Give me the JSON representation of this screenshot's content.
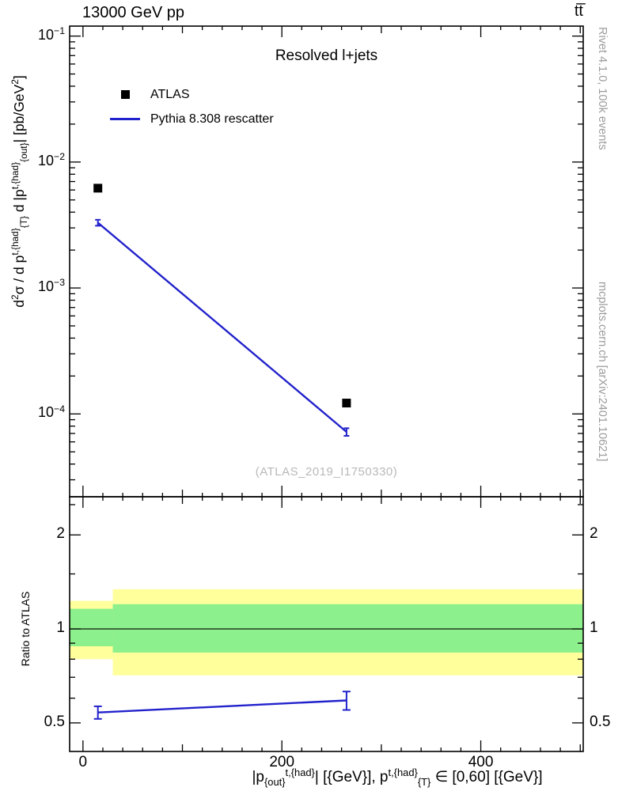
{
  "header": {
    "title_left": "13000 GeV pp",
    "title_right": "tt̅"
  },
  "side_captions": {
    "top": "Rivet 4.1.0,  100k events",
    "bottom": "mcplots.cern.ch [arXiv:2401.10621]"
  },
  "panel_title": "Resolved l+jets",
  "watermark": "(ATLAS_2019_I1750330)",
  "legend": [
    {
      "label": "ATLAS",
      "marker": "filled-square",
      "color": "#000000"
    },
    {
      "label": "Pythia 8.308 rescatter",
      "marker": "line",
      "color": "#2222cc"
    }
  ],
  "colors": {
    "line": "#2222cc",
    "band_outer": "#ffff9c",
    "band_inner": "#8cf08c",
    "caption": "#9b9b9b",
    "watermark": "#b9b9b9"
  },
  "chart_data": [
    {
      "name": "main",
      "type": "line",
      "title": "Resolved l+jets",
      "yscale": "log",
      "ylim": [
        2.2e-05,
        0.12
      ],
      "xlim": [
        -13.4,
        503
      ],
      "xticks": [
        0,
        200,
        400
      ],
      "x_minor_step": 20,
      "x_medium_step": 100,
      "ytick_exponents": [
        -1,
        -2,
        -3,
        -4
      ],
      "ylabel_segments": [
        {
          "t": "d"
        },
        {
          "t": "2",
          "s": "sup"
        },
        {
          "t": "σ / d p"
        },
        {
          "t": "t,{had}",
          "s": "sup"
        },
        {
          "t": "{T}",
          "s": "sub"
        },
        {
          "t": " d |p"
        },
        {
          "t": "t,{had}",
          "s": "sup"
        },
        {
          "t": "{out}",
          "s": "sub"
        },
        {
          "t": "| [pb/GeV"
        },
        {
          "t": "2",
          "s": "sup"
        },
        {
          "t": "]"
        }
      ],
      "series": [
        {
          "name": "ATLAS",
          "type": "scatter",
          "marker": "square",
          "color": "#000000",
          "x": [
            15,
            265
          ],
          "y": [
            0.0062,
            0.000122
          ]
        },
        {
          "name": "Pythia 8.308 rescatter",
          "type": "line",
          "color": "#2222cc",
          "x": [
            15,
            265
          ],
          "y": [
            0.0033,
            7.2e-05
          ],
          "yerr": [
            0.00018,
            5e-06
          ]
        }
      ]
    },
    {
      "name": "ratio",
      "type": "ratio-line",
      "ylabel": "Ratio to ATLAS",
      "yscale": "log",
      "ylim": [
        0.405,
        2.65
      ],
      "yticks": [
        2,
        1,
        0.5
      ],
      "ytick_labels": [
        "2",
        "1",
        "0.5"
      ],
      "y_minor_ticks": [
        0.6,
        0.7,
        0.8,
        0.9,
        1.5,
        2.5
      ],
      "reference_line": 1,
      "bands": [
        {
          "x1": -13.4,
          "x2": 30,
          "lo": 0.8,
          "hi": 1.23,
          "level": "outer"
        },
        {
          "x1": 30,
          "x2": 503,
          "lo": 0.71,
          "hi": 1.34,
          "level": "outer"
        },
        {
          "x1": -13.4,
          "x2": 30,
          "lo": 0.88,
          "hi": 1.16,
          "level": "inner"
        },
        {
          "x1": 30,
          "x2": 503,
          "lo": 0.84,
          "hi": 1.2,
          "level": "inner"
        }
      ],
      "series": [
        {
          "name": "Pythia 8.308 rescatter / ATLAS",
          "color": "#2222cc",
          "x": [
            15,
            265
          ],
          "y": [
            0.54,
            0.59
          ],
          "yerr": [
            0.025,
            0.04
          ]
        }
      ],
      "xlabel_segments": [
        {
          "t": "|p"
        },
        {
          "t": "{out}",
          "s": "sub"
        },
        {
          "t": "t,{had}",
          "s": "sup"
        },
        {
          "t": "| [{GeV}], p"
        },
        {
          "t": "t,{had}",
          "s": "sup"
        },
        {
          "t": "{T}",
          "s": "sub"
        },
        {
          "t": " ∈ [0,60] [{GeV}]"
        }
      ]
    }
  ]
}
